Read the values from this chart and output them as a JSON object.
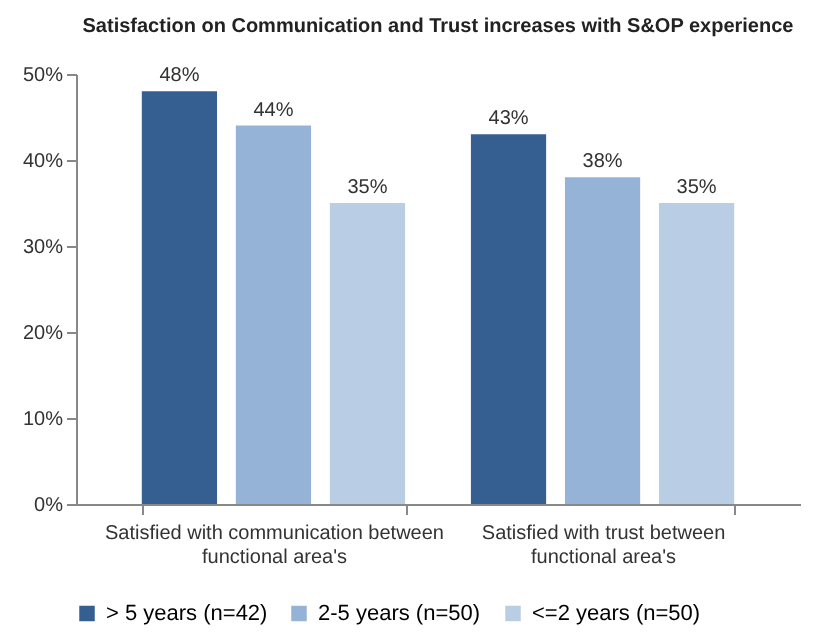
{
  "chart_data": {
    "type": "bar",
    "title": "Satisfaction on Communication and Trust increases with S&OP experience",
    "categories": [
      "Satisfied with communication between functional area's",
      "Satisfied with trust between functional area's"
    ],
    "series": [
      {
        "name": "> 5 years (n=42)",
        "color": "#365f91",
        "values": [
          48,
          43
        ],
        "value_labels": [
          "48%",
          "43%"
        ]
      },
      {
        "name": "2-5 years (n=50)",
        "color": "#95b3d7",
        "values": [
          44,
          38
        ],
        "value_labels": [
          "44%",
          "38%"
        ]
      },
      {
        "name": "<=2 years (n=50)",
        "color": "#b9cde5",
        "values": [
          35,
          35
        ],
        "value_labels": [
          "35%",
          "35%"
        ]
      }
    ],
    "ylim": [
      0,
      50
    ],
    "yticks": [
      {
        "value": 0,
        "label": "0%"
      },
      {
        "value": 10,
        "label": "10%"
      },
      {
        "value": 20,
        "label": "20%"
      },
      {
        "value": 30,
        "label": "30%"
      },
      {
        "value": 40,
        "label": "40%"
      },
      {
        "value": 50,
        "label": "50%"
      }
    ],
    "grid": false,
    "legend": "bottom"
  }
}
